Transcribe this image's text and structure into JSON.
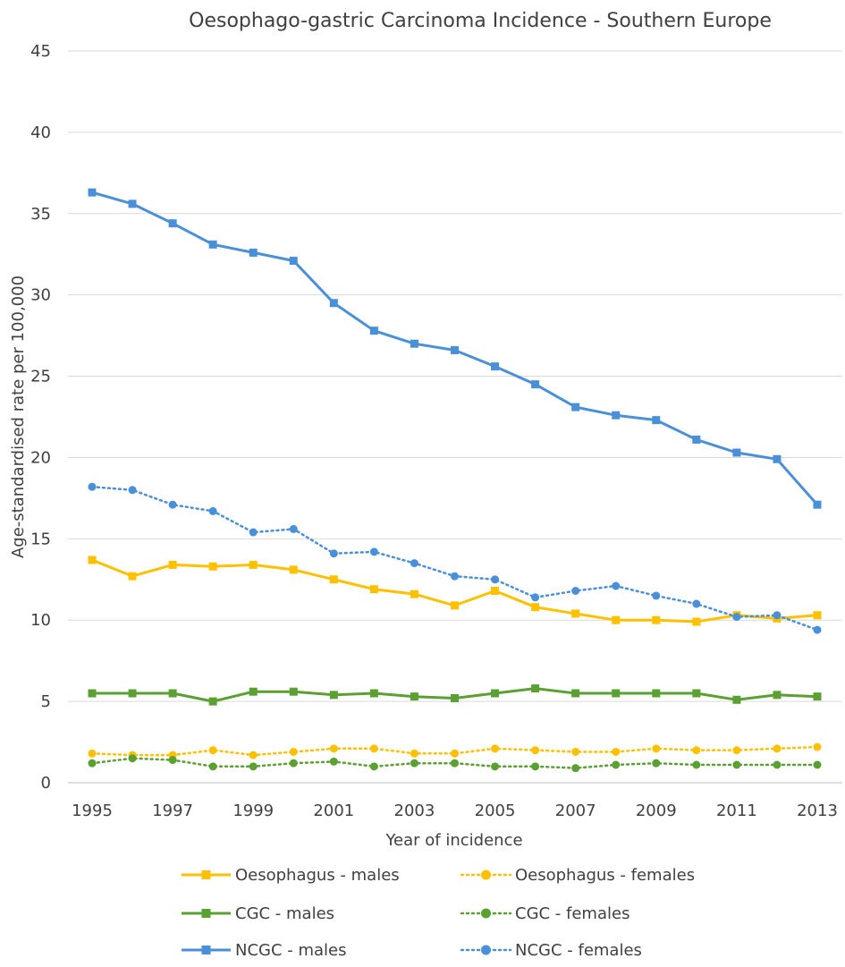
{
  "chart_data": {
    "type": "line",
    "title": "Oesophago-gastric Carcinoma Incidence - Southern Europe",
    "xlabel": "Year of incidence",
    "ylabel": "Age-standardised rate per 100,000",
    "ylim": [
      0,
      45
    ],
    "yticks": [
      0,
      5,
      10,
      15,
      20,
      25,
      30,
      35,
      40,
      45
    ],
    "x": [
      1995,
      1996,
      1997,
      1998,
      1999,
      2000,
      2001,
      2002,
      2003,
      2004,
      2005,
      2006,
      2007,
      2008,
      2009,
      2010,
      2011,
      2012,
      2013
    ],
    "xtick_labels": [
      "1995",
      "1997",
      "1999",
      "2001",
      "2003",
      "2005",
      "2007",
      "2009",
      "2011",
      "2013"
    ],
    "grid": true,
    "legend_position": "bottom",
    "series": [
      {
        "name": "Oesophagus - males",
        "color": "#FFC000",
        "dash": "solid",
        "marker": "square",
        "values": [
          13.7,
          12.7,
          13.4,
          13.3,
          13.4,
          13.1,
          12.5,
          11.9,
          11.6,
          10.9,
          11.8,
          10.8,
          10.4,
          10.0,
          10.0,
          9.9,
          10.3,
          10.1,
          10.3
        ]
      },
      {
        "name": "Oesophagus - females",
        "color": "#FFC000",
        "dash": "dotted",
        "marker": "circle",
        "values": [
          1.8,
          1.7,
          1.7,
          2.0,
          1.7,
          1.9,
          2.1,
          2.1,
          1.8,
          1.8,
          2.1,
          2.0,
          1.9,
          1.9,
          2.1,
          2.0,
          2.0,
          2.1,
          2.2
        ]
      },
      {
        "name": "CGC - males",
        "color": "#5BA033",
        "dash": "solid",
        "marker": "square",
        "values": [
          5.5,
          5.5,
          5.5,
          5.0,
          5.6,
          5.6,
          5.4,
          5.5,
          5.3,
          5.2,
          5.5,
          5.8,
          5.5,
          5.5,
          5.5,
          5.5,
          5.1,
          5.4,
          5.3
        ]
      },
      {
        "name": "CGC - females",
        "color": "#5BA033",
        "dash": "dotted",
        "marker": "circle",
        "values": [
          1.2,
          1.5,
          1.4,
          1.0,
          1.0,
          1.2,
          1.3,
          1.0,
          1.2,
          1.2,
          1.0,
          1.0,
          0.9,
          1.1,
          1.2,
          1.1,
          1.1,
          1.1,
          1.1
        ]
      },
      {
        "name": "NCGC - males",
        "color": "#4A90D9",
        "dash": "solid",
        "marker": "square",
        "values": [
          36.3,
          35.6,
          34.4,
          33.1,
          32.6,
          32.1,
          29.5,
          27.8,
          27.0,
          26.6,
          25.6,
          24.5,
          23.1,
          22.6,
          22.3,
          21.1,
          20.3,
          19.9,
          17.1
        ]
      },
      {
        "name": "NCGC - females",
        "color": "#4A90D9",
        "dash": "dotted",
        "marker": "circle",
        "values": [
          18.2,
          18.0,
          17.1,
          16.7,
          15.4,
          15.6,
          14.1,
          14.2,
          13.5,
          12.7,
          12.5,
          11.4,
          11.8,
          12.1,
          11.5,
          11.0,
          10.2,
          10.3,
          9.4
        ]
      }
    ]
  }
}
